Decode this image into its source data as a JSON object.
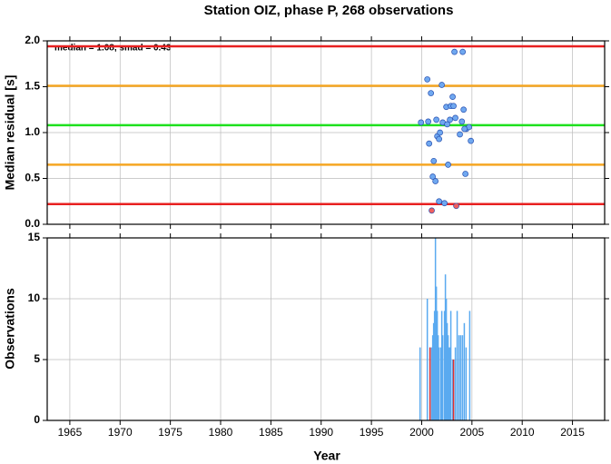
{
  "chart_data": [
    {
      "type": "scatter",
      "title": "Station OIZ, phase P, 268 observations",
      "ylabel": "Median residual [s]",
      "annotation": "median = 1.08, smad = 0.43",
      "xlim": [
        1962.75,
        2018.2
      ],
      "ylim": [
        0,
        2
      ],
      "yticks": [
        {
          "value": 0,
          "label": "0.0"
        },
        0.5,
        {
          "value": 1,
          "label": "1.0"
        },
        1.5,
        {
          "value": 2,
          "label": "2.0"
        }
      ],
      "grid": true,
      "hlines": [
        {
          "value": 1.94,
          "color": "#e82020"
        },
        {
          "value": 1.51,
          "color": "#f5a623"
        },
        {
          "value": 1.08,
          "color": "#1ee01e"
        },
        {
          "value": 0.65,
          "color": "#f5a623"
        },
        {
          "value": 0.22,
          "color": "#e82020"
        }
      ],
      "series": [
        {
          "color": "#6fa8f0",
          "x": [
            2000.56,
            1999.93,
            2000.65,
            2000.92,
            2000.74,
            2001.2,
            2001.1,
            2001.37,
            2001.46,
            2001.55,
            2001.73,
            2001.82,
            2002.0,
            2002.09,
            2001.73,
            2002.27,
            2002.45,
            2002.54,
            2002.63,
            2002.81,
            2002.9,
            2003.08,
            2003.17,
            2003.26,
            2003.35,
            2003.8,
            2004.08,
            2004.17,
            2004.0,
            2004.35,
            2004.44,
            2004.71,
            2004.89,
            2004.26
          ],
          "values": [
            1.58,
            1.11,
            1.12,
            1.43,
            0.88,
            0.69,
            0.52,
            0.47,
            1.14,
            0.96,
            0.93,
            1.0,
            1.52,
            1.11,
            0.25,
            0.23,
            1.28,
            1.09,
            0.65,
            1.14,
            1.29,
            1.39,
            1.29,
            1.88,
            1.16,
            0.98,
            1.88,
            1.25,
            1.12,
            0.55,
            1.04,
            1.06,
            0.91,
            1.04
          ]
        },
        {
          "color": "#f06060",
          "x": [
            2001.0,
            2003.44
          ],
          "values": [
            0.15,
            0.2
          ]
        }
      ]
    },
    {
      "type": "bar",
      "ylabel": "Observations",
      "xlabel": "Year",
      "xlim": [
        1962.75,
        2018.2
      ],
      "xticks": [
        1965,
        1970,
        1975,
        1980,
        1985,
        1990,
        1995,
        2000,
        2005,
        2010,
        2015
      ],
      "ylim": [
        0,
        15
      ],
      "yticks": [
        0,
        5,
        10,
        15
      ],
      "grid": true,
      "series": [
        {
          "color": "#5aaaf0",
          "x": [
            1999.84,
            2000.56,
            2000.83,
            2001.0,
            2001.1,
            2001.19,
            2001.28,
            2001.37,
            2001.46,
            2001.55,
            2001.64,
            2001.73,
            2001.91,
            2002.0,
            2002.09,
            2002.27,
            2002.36,
            2002.45,
            2002.54,
            2002.63,
            2002.72,
            2002.81,
            2002.9,
            2003.08,
            2003.17,
            2003.35,
            2003.53,
            2003.71,
            2003.88,
            2004.06,
            2004.24,
            2004.42,
            2004.78
          ],
          "values": [
            6,
            10,
            6,
            6,
            7,
            8,
            9,
            15,
            11,
            9,
            7,
            6,
            6,
            9,
            7,
            9,
            12,
            10,
            8,
            7,
            6,
            6,
            9,
            5,
            5,
            6,
            9,
            7,
            7,
            7,
            8,
            6,
            9
          ]
        },
        {
          "color": "#e03030",
          "x": [
            2000.83,
            2003.17
          ],
          "values": [
            6,
            5
          ]
        }
      ]
    }
  ]
}
